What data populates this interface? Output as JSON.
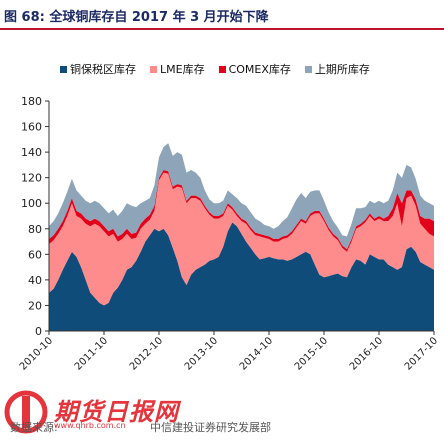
{
  "header": {
    "title": "图 68:  全球铜库存自 2017 年 3 月开始下降"
  },
  "colors": {
    "series1": "#0f4c7a",
    "series2": "#ff8c8c",
    "series3": "#e3001b",
    "series4": "#8da4b9",
    "title": "#1b2a63",
    "rule": "#c0102a",
    "logo": "#e4343c"
  },
  "footer": {
    "source_label": "数据来源:",
    "source_value": "中信建投证券研究发展部",
    "logo_text": "期货日报网",
    "logo_url": "www.qhrb.com.cn"
  },
  "chart_data": {
    "type": "area",
    "stacked": true,
    "title": "",
    "xlabel": "",
    "ylabel": "",
    "ylim": [
      0,
      180
    ],
    "yticks": [
      0,
      20,
      40,
      60,
      80,
      100,
      120,
      140,
      160,
      180
    ],
    "xticks": [
      "2010-10",
      "2011-10",
      "2012-10",
      "2013-10",
      "2014-10",
      "2015-10",
      "2016-10",
      "2017-10"
    ],
    "grid": false,
    "legend_position": "top",
    "x": [
      "2010-10",
      "2010-11",
      "2010-12",
      "2011-01",
      "2011-02",
      "2011-03",
      "2011-04",
      "2011-05",
      "2011-06",
      "2011-07",
      "2011-08",
      "2011-09",
      "2011-10",
      "2011-11",
      "2011-12",
      "2012-01",
      "2012-02",
      "2012-03",
      "2012-04",
      "2012-05",
      "2012-06",
      "2012-07",
      "2012-08",
      "2012-09",
      "2012-10",
      "2012-11",
      "2012-12",
      "2013-01",
      "2013-02",
      "2013-03",
      "2013-04",
      "2013-05",
      "2013-06",
      "2013-07",
      "2013-08",
      "2013-09",
      "2013-10",
      "2013-11",
      "2013-12",
      "2014-01",
      "2014-02",
      "2014-03",
      "2014-04",
      "2014-05",
      "2014-06",
      "2014-07",
      "2014-08",
      "2014-09",
      "2014-10",
      "2014-11",
      "2014-12",
      "2015-01",
      "2015-02",
      "2015-03",
      "2015-04",
      "2015-05",
      "2015-06",
      "2015-07",
      "2015-08",
      "2015-09",
      "2015-10",
      "2015-11",
      "2015-12",
      "2016-01",
      "2016-02",
      "2016-03",
      "2016-04",
      "2016-05",
      "2016-06",
      "2016-07",
      "2016-08",
      "2016-09",
      "2016-10",
      "2016-11",
      "2016-12",
      "2017-01",
      "2017-02",
      "2017-03",
      "2017-04",
      "2017-05",
      "2017-06",
      "2017-07",
      "2017-08",
      "2017-09",
      "2017-10"
    ],
    "series": [
      {
        "name": "铜保税区库存",
        "values": [
          30,
          33,
          40,
          48,
          55,
          62,
          58,
          50,
          40,
          30,
          26,
          22,
          20,
          22,
          30,
          34,
          40,
          48,
          50,
          55,
          62,
          70,
          75,
          80,
          78,
          80,
          75,
          65,
          55,
          42,
          36,
          44,
          48,
          50,
          52,
          55,
          56,
          58,
          66,
          78,
          85,
          82,
          76,
          70,
          65,
          60,
          56,
          57,
          58,
          57,
          56,
          56,
          55,
          56,
          58,
          60,
          62,
          60,
          52,
          44,
          42,
          43,
          44,
          45,
          43,
          42,
          50,
          56,
          55,
          52,
          60,
          58,
          56,
          56,
          52,
          50,
          48,
          50,
          64,
          66,
          62,
          54,
          52,
          50,
          48
        ],
        "color": "#0f4c7a"
      },
      {
        "name": "LME库存",
        "values": [
          38,
          38,
          36,
          34,
          35,
          38,
          32,
          38,
          44,
          52,
          58,
          60,
          58,
          52,
          46,
          36,
          32,
          28,
          22,
          18,
          18,
          14,
          12,
          14,
          40,
          44,
          48,
          46,
          58,
          70,
          64,
          60,
          56,
          52,
          44,
          36,
          32,
          30,
          24,
          20,
          10,
          8,
          10,
          14,
          14,
          15,
          18,
          16,
          14,
          13,
          14,
          16,
          18,
          20,
          23,
          26,
          22,
          30,
          40,
          48,
          44,
          36,
          30,
          26,
          22,
          20,
          20,
          24,
          27,
          33,
          30,
          28,
          32,
          30,
          34,
          40,
          52,
          32,
          40,
          40,
          36,
          30,
          28,
          26,
          26
        ],
        "color": "#ff8c8c"
      },
      {
        "name": "COMEX库存",
        "values": [
          4,
          4,
          4,
          4,
          4,
          4,
          4,
          4,
          4,
          4,
          4,
          4,
          4,
          4,
          4,
          4,
          4,
          4,
          4,
          4,
          4,
          4,
          4,
          4,
          2,
          2,
          2,
          2,
          2,
          2,
          2,
          2,
          2,
          2,
          2,
          2,
          2,
          2,
          2,
          2,
          2,
          2,
          2,
          2,
          2,
          2,
          2,
          2,
          2,
          2,
          2,
          2,
          2,
          2,
          2,
          2,
          2,
          2,
          2,
          2,
          2,
          2,
          2,
          2,
          2,
          2,
          2,
          2,
          2,
          2,
          2,
          2,
          2,
          2,
          4,
          6,
          8,
          18,
          6,
          4,
          5,
          6,
          8,
          12,
          12
        ],
        "color": "#e3001b"
      },
      {
        "name": "上期所库存",
        "values": [
          10,
          11,
          12,
          14,
          15,
          15,
          16,
          14,
          14,
          14,
          14,
          14,
          14,
          14,
          15,
          16,
          18,
          20,
          22,
          20,
          16,
          14,
          13,
          16,
          16,
          18,
          22,
          24,
          25,
          24,
          22,
          20,
          18,
          16,
          12,
          10,
          10,
          10,
          10,
          10,
          10,
          12,
          12,
          12,
          12,
          11,
          10,
          8,
          8,
          8,
          10,
          12,
          14,
          18,
          20,
          20,
          18,
          17,
          16,
          16,
          14,
          12,
          10,
          8,
          8,
          10,
          12,
          14,
          12,
          10,
          10,
          12,
          12,
          12,
          12,
          14,
          16,
          20,
          20,
          18,
          16,
          16,
          14,
          12,
          12
        ],
        "color": "#8da4b9"
      }
    ]
  }
}
